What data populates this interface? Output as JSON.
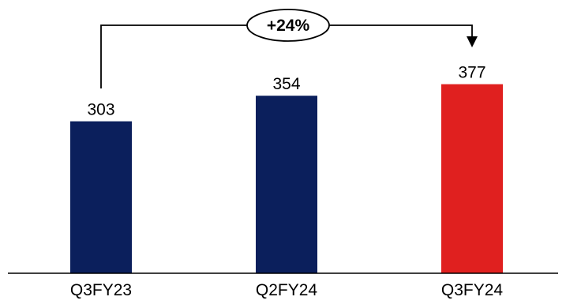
{
  "chart_data": {
    "type": "bar",
    "title": "",
    "xlabel": "",
    "ylabel": "",
    "categories": [
      "Q3FY23",
      "Q2FY24",
      "Q3FY24"
    ],
    "values": [
      303,
      354,
      377
    ],
    "data_labels": [
      "303",
      "354",
      "377"
    ],
    "bar_colors": [
      "#0b1f5c",
      "#0b1f5c",
      "#e0201f"
    ],
    "ylim": [
      0,
      400
    ],
    "grid": false,
    "legend": "none",
    "annotation": {
      "text": "+24%",
      "from_category": "Q3FY23",
      "to_category": "Q3FY24",
      "style": "bracket-arrow"
    }
  }
}
